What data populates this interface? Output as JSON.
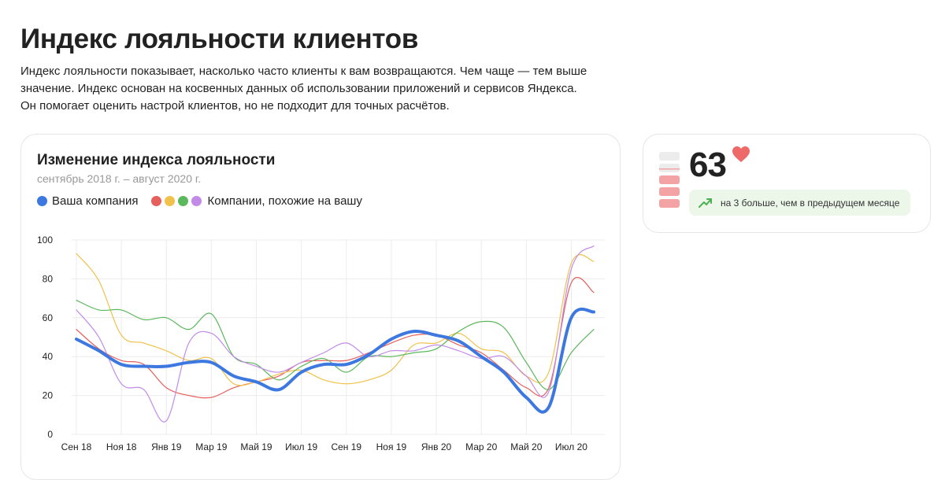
{
  "page": {
    "title": "Индекс лояльности клиентов",
    "description": "Индекс лояльности показывает, насколько часто клиенты к вам возвращаются. Чем чаще — тем выше значение. Индекс основан на косвенных данных об использовании приложений и сервисов Яндекса. Он помогает оценить настрой клиентов, но не подходит для точных расчётов."
  },
  "chart_card": {
    "title": "Изменение индекса лояльности",
    "subtitle": "сентябрь 2018 г. – август 2020 г.",
    "legend": {
      "own_label": "Ваша компания",
      "peers_label": "Компании, похожие на вашу"
    }
  },
  "summary": {
    "score": "63",
    "delta_text": "на 3 больше, чем в предыдущем месяце",
    "heart_icon": "heart-icon",
    "trend_icon": "trend-up-icon",
    "colors": {
      "heart": "#ee6a68",
      "trend": "#4caf50",
      "delta_bg": "#ecf7ea",
      "scale_on": "#f3a3a3",
      "scale_off": "#ececec"
    }
  },
  "chart_data": {
    "type": "line",
    "x_tick_labels": [
      "Сен 18",
      "Ноя 18",
      "Янв 19",
      "Мар 19",
      "Май 19",
      "Июл 19",
      "Сен 19",
      "Ноя 19",
      "Янв 20",
      "Мар 20",
      "Май 20",
      "Июл 20"
    ],
    "x_months": [
      "2018-09",
      "2018-10",
      "2018-11",
      "2018-12",
      "2019-01",
      "2019-02",
      "2019-03",
      "2019-04",
      "2019-05",
      "2019-06",
      "2019-07",
      "2019-08",
      "2019-09",
      "2019-10",
      "2019-11",
      "2019-12",
      "2020-01",
      "2020-02",
      "2020-03",
      "2020-04",
      "2020-05",
      "2020-06",
      "2020-07",
      "2020-08"
    ],
    "ylim": [
      0,
      100
    ],
    "y_ticks": [
      0,
      20,
      40,
      60,
      80,
      100
    ],
    "grid": true,
    "series": [
      {
        "name": "Ваша компания",
        "color": "#3c78e0",
        "width": 4,
        "values": [
          49,
          43,
          36,
          35,
          35,
          37,
          37,
          30,
          27,
          23,
          32,
          36,
          36,
          41,
          49,
          53,
          51,
          48,
          40,
          32,
          19,
          14,
          60,
          63
        ]
      },
      {
        "color": "#e55f5c",
        "width": 1.2,
        "values": [
          54,
          44,
          38,
          36,
          24,
          20,
          19,
          24,
          27,
          30,
          37,
          38,
          38,
          42,
          47,
          51,
          51,
          46,
          42,
          33,
          24,
          24,
          78,
          73
        ]
      },
      {
        "color": "#f0c14b",
        "width": 1.2,
        "values": [
          93,
          79,
          51,
          47,
          43,
          38,
          39,
          26,
          27,
          31,
          33,
          28,
          26,
          28,
          33,
          46,
          47,
          52,
          44,
          42,
          30,
          32,
          88,
          89
        ]
      },
      {
        "color": "#5cb85c",
        "width": 1.2,
        "values": [
          69,
          64,
          64,
          59,
          60,
          54,
          62,
          40,
          36,
          28,
          35,
          39,
          32,
          40,
          40,
          42,
          44,
          53,
          58,
          55,
          37,
          23,
          42,
          54
        ]
      },
      {
        "color": "#c28be8",
        "width": 1.2,
        "values": [
          64,
          50,
          26,
          23,
          7,
          47,
          52,
          40,
          35,
          32,
          37,
          42,
          47,
          40,
          43,
          43,
          46,
          43,
          39,
          40,
          30,
          22,
          85,
          97
        ]
      }
    ]
  }
}
